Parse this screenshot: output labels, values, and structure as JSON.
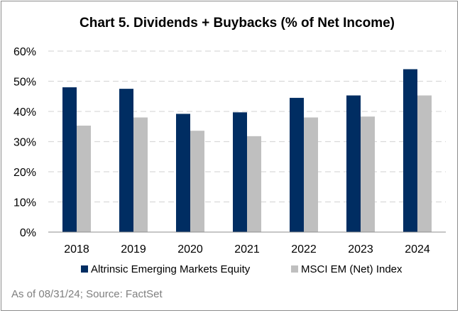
{
  "source_note": "As of 08/31/24; Source: FactSet",
  "chart_data": {
    "type": "bar",
    "title": "Chart 5. Dividends + Buybacks (% of Net Income)",
    "categories": [
      "2018",
      "2019",
      "2020",
      "2021",
      "2022",
      "2023",
      "2024"
    ],
    "series": [
      {
        "name": "Altrinsic Emerging Markets Equity",
        "color": "#002D62",
        "values": [
          48,
          47.5,
          39.2,
          39.7,
          44.5,
          45.3,
          54
        ]
      },
      {
        "name": "MSCI EM (Net) Index",
        "color": "#BFBFBF",
        "values": [
          35.3,
          38,
          33.6,
          31.8,
          38,
          38.3,
          45.3
        ]
      }
    ],
    "y_ticks": [
      "0%",
      "10%",
      "20%",
      "30%",
      "40%",
      "50%",
      "60%"
    ],
    "ylim": [
      0,
      60
    ],
    "grid": "horizontal dashed",
    "legend_position": "bottom"
  }
}
